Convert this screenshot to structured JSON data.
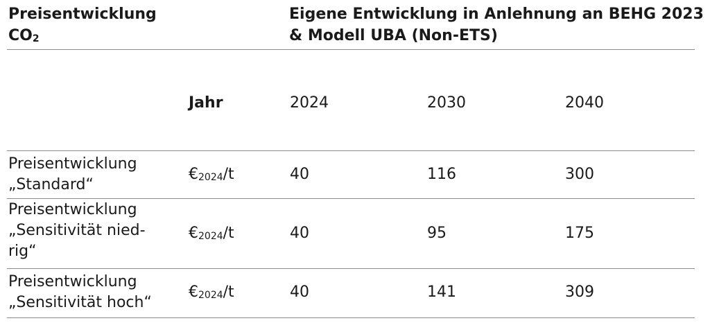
{
  "header": {
    "col1_line1": "Preisentwicklung",
    "col1_line2_main": "CO",
    "col1_line2_sub": "2",
    "col2_line1": "Eigene Entwicklung in Anlehnung an BEHG 2023",
    "col2_line2": "& Modell UBA (Non-ETS)"
  },
  "year_row": {
    "label": "Jahr",
    "years": [
      "2024",
      "2030",
      "2040"
    ]
  },
  "rows": [
    {
      "label_lines": [
        "Preisentwicklung",
        "„Standard“"
      ],
      "unit_prefix": "€",
      "unit_sub": "2024",
      "unit_suffix": "/t",
      "values": [
        "40",
        "116",
        "300"
      ]
    },
    {
      "label_lines": [
        "Preisentwicklung",
        "„Sensitivität nied-",
        "rig“"
      ],
      "unit_prefix": "€",
      "unit_sub": "2024",
      "unit_suffix": "/t",
      "values": [
        "40",
        "95",
        "175"
      ]
    },
    {
      "label_lines": [
        "Preisentwicklung",
        "„Sensitivität hoch“"
      ],
      "unit_prefix": "€",
      "unit_sub": "2024",
      "unit_suffix": "/t",
      "values": [
        "40",
        "141",
        "309"
      ]
    }
  ]
}
